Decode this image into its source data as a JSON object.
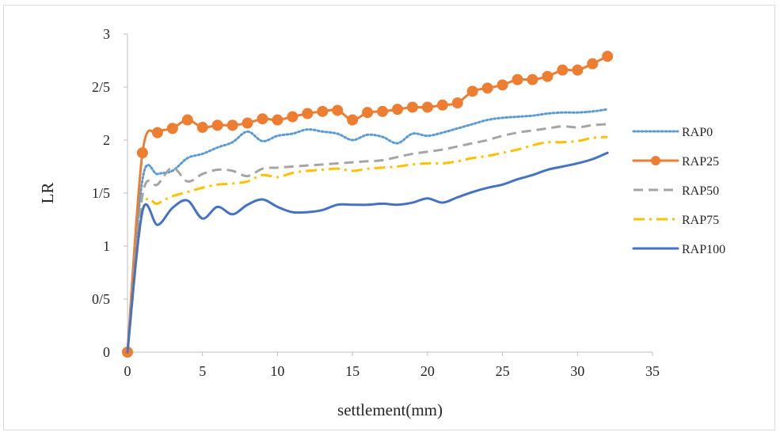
{
  "chart_data": {
    "type": "line",
    "title": "",
    "xlabel": "settlement(mm)",
    "ylabel": "LR",
    "xlim": [
      0,
      35
    ],
    "ylim": [
      0,
      3
    ],
    "x_ticks": [
      {
        "value": 0,
        "label": "0"
      },
      {
        "value": 5,
        "label": "5"
      },
      {
        "value": 10,
        "label": "10"
      },
      {
        "value": 15,
        "label": "15"
      },
      {
        "value": 20,
        "label": "20"
      },
      {
        "value": 25,
        "label": "25"
      },
      {
        "value": 30,
        "label": "30"
      },
      {
        "value": 35,
        "label": "35"
      }
    ],
    "y_ticks": [
      {
        "value": 0,
        "label": "0"
      },
      {
        "value": 0.5,
        "label": "0/5"
      },
      {
        "value": 1,
        "label": "1"
      },
      {
        "value": 1.5,
        "label": "1/5"
      },
      {
        "value": 2,
        "label": "2"
      },
      {
        "value": 2.5,
        "label": "2/5"
      },
      {
        "value": 3,
        "label": "3"
      }
    ],
    "grid": false,
    "legend_position": "right",
    "x": [
      0,
      1,
      2,
      3,
      4,
      5,
      6,
      7,
      8,
      9,
      10,
      11,
      12,
      13,
      14,
      15,
      16,
      17,
      18,
      19,
      20,
      21,
      22,
      23,
      24,
      25,
      26,
      27,
      28,
      29,
      30,
      31,
      32
    ],
    "series": [
      {
        "name": "RAP0",
        "color": "#5b9bd5",
        "style": "dotted",
        "values": [
          0,
          1.63,
          1.68,
          1.71,
          1.83,
          1.87,
          1.93,
          1.98,
          2.08,
          1.99,
          2.04,
          2.06,
          2.1,
          2.08,
          2.06,
          2.0,
          2.05,
          2.03,
          1.97,
          2.06,
          2.04,
          2.07,
          2.11,
          2.15,
          2.19,
          2.21,
          2.22,
          2.23,
          2.25,
          2.26,
          2.26,
          2.27,
          2.29
        ]
      },
      {
        "name": "RAP25",
        "color": "#ed7d31",
        "style": "solid-marker",
        "values": [
          0,
          1.88,
          2.07,
          2.11,
          2.19,
          2.12,
          2.14,
          2.14,
          2.16,
          2.2,
          2.19,
          2.22,
          2.25,
          2.27,
          2.28,
          2.19,
          2.26,
          2.27,
          2.29,
          2.31,
          2.31,
          2.33,
          2.35,
          2.46,
          2.49,
          2.52,
          2.57,
          2.57,
          2.6,
          2.66,
          2.66,
          2.72,
          2.79
        ]
      },
      {
        "name": "RAP50",
        "color": "#a5a5a5",
        "style": "dashed",
        "values": [
          0,
          1.48,
          1.58,
          1.74,
          1.61,
          1.68,
          1.72,
          1.71,
          1.66,
          1.73,
          1.74,
          1.75,
          1.76,
          1.77,
          1.78,
          1.79,
          1.8,
          1.81,
          1.84,
          1.87,
          1.89,
          1.91,
          1.94,
          1.97,
          2.0,
          2.04,
          2.07,
          2.09,
          2.11,
          2.13,
          2.12,
          2.14,
          2.15
        ]
      },
      {
        "name": "RAP75",
        "color": "#ffc000",
        "style": "dash-dot",
        "values": [
          0,
          1.33,
          1.4,
          1.47,
          1.51,
          1.55,
          1.58,
          1.59,
          1.61,
          1.67,
          1.65,
          1.69,
          1.71,
          1.72,
          1.73,
          1.71,
          1.73,
          1.74,
          1.75,
          1.77,
          1.78,
          1.78,
          1.8,
          1.83,
          1.85,
          1.88,
          1.91,
          1.95,
          1.98,
          1.98,
          1.99,
          2.02,
          2.03
        ]
      },
      {
        "name": "RAP100",
        "color": "#4472c4",
        "style": "solid",
        "values": [
          0,
          1.33,
          1.2,
          1.36,
          1.43,
          1.26,
          1.37,
          1.3,
          1.39,
          1.44,
          1.37,
          1.32,
          1.32,
          1.34,
          1.39,
          1.39,
          1.39,
          1.4,
          1.39,
          1.41,
          1.45,
          1.41,
          1.46,
          1.51,
          1.55,
          1.58,
          1.63,
          1.67,
          1.72,
          1.75,
          1.78,
          1.82,
          1.88
        ]
      }
    ]
  }
}
